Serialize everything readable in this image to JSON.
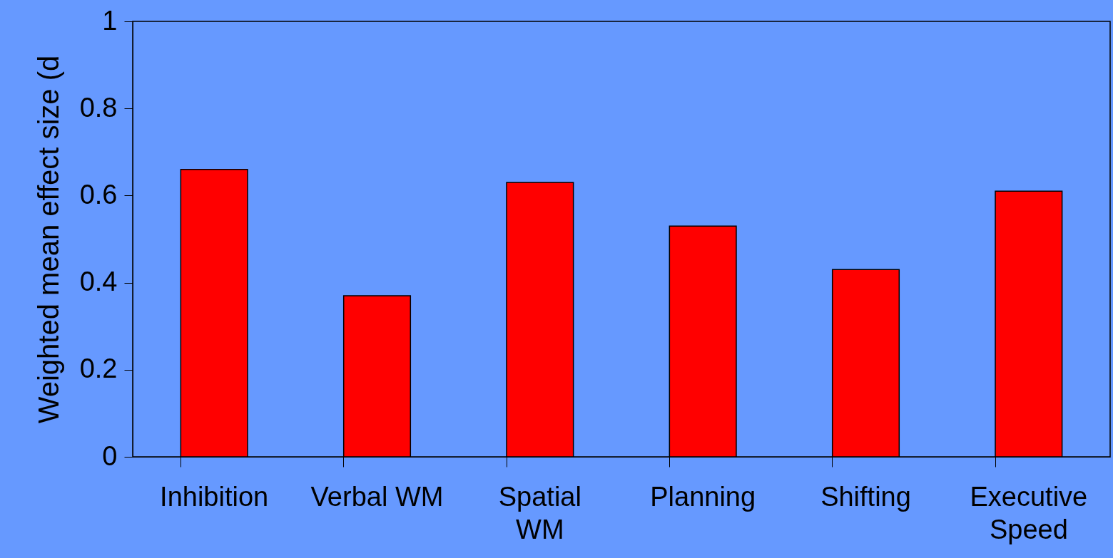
{
  "chart_data": {
    "type": "bar",
    "ylabel": "Weighted mean effect size (d",
    "categories": [
      "Inhibition",
      "Verbal WM",
      "Spatial WM",
      "Planning",
      "Shifting",
      "Executive Speed"
    ],
    "values": [
      0.66,
      0.37,
      0.63,
      0.53,
      0.43,
      0.61
    ],
    "color": "#ff0000",
    "ylim": [
      0,
      1
    ],
    "yticks": [
      0,
      0.2,
      0.4,
      0.6,
      0.8,
      1
    ],
    "grid": false
  }
}
